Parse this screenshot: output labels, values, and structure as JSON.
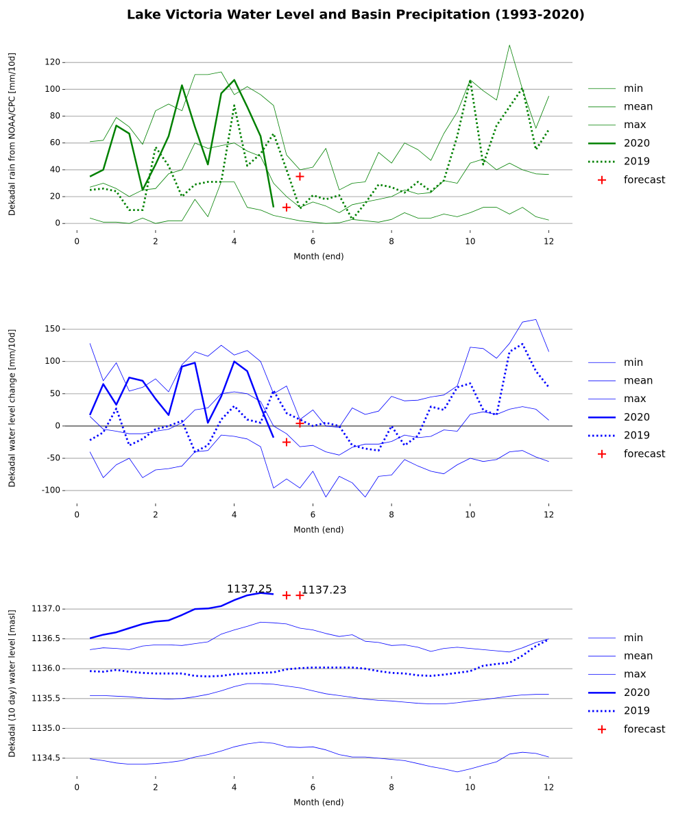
{
  "title": "Lake Victoria Water Level and Basin Precipitation (1993-2020)",
  "chart_data": [
    {
      "type": "line",
      "xlabel": "Month (end)",
      "ylabel": "Dekadal rain from NOAA/CPC [mm/10d]",
      "xlim": [
        -0.3,
        12.6
      ],
      "xticks": [
        0,
        2,
        4,
        6,
        8,
        10,
        12
      ],
      "ylim": [
        -5,
        138
      ],
      "yticks": [
        0,
        20,
        40,
        60,
        80,
        100,
        120
      ],
      "grid": true,
      "legend": "right",
      "x": [
        0.33,
        0.67,
        1,
        1.33,
        1.67,
        2,
        2.33,
        2.67,
        3,
        3.33,
        3.67,
        4,
        4.33,
        4.67,
        5,
        5.33,
        5.67,
        6,
        6.33,
        6.67,
        7,
        7.33,
        7.67,
        8,
        8.33,
        8.67,
        9,
        9.33,
        9.67,
        10,
        10.33,
        10.67,
        11,
        11.33,
        11.67,
        12
      ],
      "series": [
        {
          "name": "min",
          "color": "#008000",
          "linewidth": 0.8,
          "linestyle": "solid",
          "values": [
            4,
            1,
            1,
            0,
            4,
            0,
            2,
            2,
            18,
            5,
            31,
            31,
            12,
            10,
            6,
            4,
            2,
            1,
            0,
            0.5,
            3,
            2,
            1,
            3,
            8,
            4,
            4,
            7,
            5,
            8,
            12,
            12,
            7,
            12,
            5,
            2.5
          ]
        },
        {
          "name": "mean",
          "color": "#008000",
          "linewidth": 0.8,
          "linestyle": "solid",
          "values": [
            27,
            30,
            26,
            20,
            25,
            26,
            37,
            40,
            60,
            56,
            58,
            60,
            54,
            50,
            30,
            20,
            12,
            16,
            13,
            8,
            14,
            16,
            18,
            20,
            25,
            22,
            23,
            32,
            30,
            45,
            48,
            40,
            45,
            40,
            37,
            36.5
          ]
        },
        {
          "name": "max",
          "color": "#008000",
          "linewidth": 0.8,
          "linestyle": "solid",
          "values": [
            61,
            62,
            79,
            72,
            59,
            84,
            89,
            84,
            111,
            111,
            113,
            96,
            102,
            96,
            88,
            51,
            40,
            42,
            56,
            25,
            30,
            31,
            53,
            45,
            60,
            55,
            47,
            67,
            83,
            107,
            99,
            92,
            133,
            100,
            71,
            95
          ]
        },
        {
          "name": "2020",
          "color": "#008000",
          "linewidth": 2.5,
          "linestyle": "solid",
          "values": [
            35,
            40,
            73,
            67,
            25,
            44,
            65,
            103,
            72,
            44,
            97,
            107,
            87,
            65,
            12,
            null,
            null,
            null,
            null,
            null,
            null,
            null,
            null,
            null,
            null,
            null,
            null,
            null,
            null,
            null,
            null,
            null,
            null,
            null,
            null,
            null
          ]
        },
        {
          "name": "2019",
          "color": "#008000",
          "linewidth": 2.8,
          "linestyle": "dotted",
          "values": [
            25,
            26,
            24,
            10,
            10,
            57,
            43,
            20,
            29,
            31,
            31,
            88,
            43,
            52,
            67,
            40,
            11,
            21,
            18,
            21,
            3,
            15,
            29,
            27,
            23,
            31,
            24,
            32,
            65,
            107,
            44,
            73,
            87,
            101,
            55,
            70
          ]
        },
        {
          "name": "forecast",
          "color": "#ff0000",
          "marker": "+",
          "x": [
            5.33,
            5.67
          ],
          "values": [
            12,
            35
          ]
        }
      ]
    },
    {
      "type": "line",
      "xlabel": "Month (end)",
      "ylabel": "Dekadal water level change [mm/10d]",
      "xlim": [
        -0.3,
        12.6
      ],
      "xticks": [
        0,
        2,
        4,
        6,
        8,
        10,
        12
      ],
      "ylim": [
        -120,
        175
      ],
      "yticks": [
        -100,
        -50,
        0,
        50,
        100,
        150
      ],
      "grid": true,
      "legend": "right",
      "hline": 0,
      "x": [
        0.33,
        0.67,
        1,
        1.33,
        1.67,
        2,
        2.33,
        2.67,
        3,
        3.33,
        3.67,
        4,
        4.33,
        4.67,
        5,
        5.33,
        5.67,
        6,
        6.33,
        6.67,
        7,
        7.33,
        7.67,
        8,
        8.33,
        8.67,
        9,
        9.33,
        9.67,
        10,
        10.33,
        10.67,
        11,
        11.33,
        11.67,
        12
      ],
      "series": [
        {
          "name": "min",
          "color": "#0000ff",
          "linewidth": 0.8,
          "linestyle": "solid",
          "values": [
            -40,
            -80,
            -60,
            -50,
            -80,
            -68,
            -66,
            -62,
            -40,
            -38,
            -14,
            -16,
            -20,
            -32,
            -96,
            -82,
            -96,
            -70,
            -110,
            -78,
            -88,
            -110,
            -78,
            -76,
            -52,
            -62,
            -70,
            -74,
            -60,
            -50,
            -55,
            -52,
            -40,
            -38,
            -48,
            -55
          ]
        },
        {
          "name": "mean",
          "color": "#0000ff",
          "linewidth": 0.8,
          "linestyle": "solid",
          "values": [
            15,
            -5,
            -8,
            -12,
            -12,
            -8,
            -5,
            5,
            25,
            28,
            50,
            53,
            50,
            38,
            0,
            -12,
            -32,
            -30,
            -40,
            -45,
            -33,
            -28,
            -28,
            -24,
            -14,
            -18,
            -16,
            -6,
            -8,
            18,
            22,
            18,
            26,
            30,
            26,
            9
          ]
        },
        {
          "name": "max",
          "color": "#0000ff",
          "linewidth": 0.8,
          "linestyle": "solid",
          "values": [
            128,
            70,
            98,
            54,
            60,
            73,
            53,
            95,
            115,
            108,
            125,
            110,
            117,
            100,
            50,
            62,
            10,
            25,
            0,
            -2,
            28,
            18,
            23,
            46,
            39,
            40,
            45,
            48,
            62,
            122,
            120,
            105,
            128,
            161,
            165,
            115
          ]
        },
        {
          "name": "2020",
          "color": "#0000ff",
          "linewidth": 2.5,
          "linestyle": "solid",
          "values": [
            17,
            65,
            33,
            75,
            70,
            42,
            17,
            92,
            98,
            5,
            46,
            100,
            85,
            30,
            -18,
            null,
            null,
            null,
            null,
            null,
            null,
            null,
            null,
            null,
            null,
            null,
            null,
            null,
            null,
            null,
            null,
            null,
            null,
            null,
            null,
            null
          ]
        },
        {
          "name": "2019",
          "color": "#0000ff",
          "linewidth": 2.8,
          "linestyle": "dotted",
          "values": [
            -22,
            -10,
            27,
            -30,
            -20,
            -5,
            0,
            8,
            -40,
            -30,
            10,
            31,
            10,
            5,
            55,
            20,
            10,
            0,
            5,
            0,
            -30,
            -35,
            -38,
            0,
            -30,
            -15,
            30,
            25,
            60,
            66,
            25,
            17,
            115,
            127,
            85,
            60
          ]
        },
        {
          "name": "forecast",
          "color": "#ff0000",
          "marker": "+",
          "x": [
            5.33,
            5.67
          ],
          "values": [
            -25,
            4
          ]
        }
      ]
    },
    {
      "type": "line",
      "xlabel": "Month (end)",
      "ylabel": "Dekadal (10 day) water level [masl]",
      "xlim": [
        -0.3,
        12.6
      ],
      "xticks": [
        0,
        2,
        4,
        6,
        8,
        10,
        12
      ],
      "ylim": [
        1134.2,
        1137.3
      ],
      "yticks": [
        {
          "value": 1134.5,
          "label": "1134.5"
        },
        {
          "value": 1135,
          "label": "1135.0"
        },
        {
          "value": 1135.5,
          "label": "1135.5"
        },
        {
          "value": 1136,
          "label": "1136.0"
        },
        {
          "value": 1136.5,
          "label": "1136.5"
        },
        {
          "value": 1137,
          "label": "1137.0"
        }
      ],
      "grid": true,
      "legend": "right",
      "annotations": [
        "1137.25",
        "1137.23"
      ],
      "x": [
        0.33,
        0.67,
        1,
        1.33,
        1.67,
        2,
        2.33,
        2.67,
        3,
        3.33,
        3.67,
        4,
        4.33,
        4.67,
        5,
        5.33,
        5.67,
        6,
        6.33,
        6.67,
        7,
        7.33,
        7.67,
        8,
        8.33,
        8.67,
        9,
        9.33,
        9.67,
        10,
        10.33,
        10.67,
        11,
        11.33,
        11.67,
        12
      ],
      "series": [
        {
          "name": "min",
          "color": "#0000ff",
          "linewidth": 0.8,
          "linestyle": "solid",
          "values": [
            1134.49,
            1134.46,
            1134.42,
            1134.4,
            1134.4,
            1134.41,
            1134.43,
            1134.46,
            1134.52,
            1134.56,
            1134.62,
            1134.69,
            1134.74,
            1134.77,
            1134.75,
            1134.69,
            1134.68,
            1134.69,
            1134.64,
            1134.56,
            1134.52,
            1134.52,
            1134.5,
            1134.48,
            1134.46,
            1134.41,
            1134.36,
            1134.32,
            1134.27,
            1134.32,
            1134.38,
            1134.44,
            1134.57,
            1134.6,
            1134.58,
            1134.52
          ]
        },
        {
          "name": "mean",
          "color": "#0000ff",
          "linewidth": 0.8,
          "linestyle": "solid",
          "values": [
            1135.55,
            1135.55,
            1135.54,
            1135.53,
            1135.51,
            1135.5,
            1135.49,
            1135.5,
            1135.53,
            1135.57,
            1135.63,
            1135.7,
            1135.75,
            1135.75,
            1135.74,
            1135.71,
            1135.68,
            1135.63,
            1135.58,
            1135.55,
            1135.52,
            1135.49,
            1135.47,
            1135.46,
            1135.44,
            1135.42,
            1135.41,
            1135.41,
            1135.43,
            1135.46,
            1135.48,
            1135.51,
            1135.54,
            1135.56,
            1135.57,
            1135.57
          ]
        },
        {
          "name": "max",
          "color": "#0000ff",
          "linewidth": 0.8,
          "linestyle": "solid",
          "values": [
            1136.32,
            1136.35,
            1136.34,
            1136.32,
            1136.38,
            1136.4,
            1136.4,
            1136.39,
            1136.42,
            1136.45,
            1136.58,
            1136.65,
            1136.71,
            1136.78,
            1136.77,
            1136.75,
            1136.68,
            1136.65,
            1136.59,
            1136.54,
            1136.57,
            1136.46,
            1136.44,
            1136.39,
            1136.4,
            1136.36,
            1136.29,
            1136.34,
            1136.36,
            1136.34,
            1136.32,
            1136.3,
            1136.28,
            1136.35,
            1136.44,
            1136.5
          ]
        },
        {
          "name": "2020",
          "color": "#0000ff",
          "linewidth": 2.5,
          "linestyle": "solid",
          "values": [
            1136.51,
            1136.57,
            1136.61,
            1136.68,
            1136.75,
            1136.79,
            1136.81,
            1136.9,
            1137.0,
            1137.01,
            1137.05,
            1137.15,
            1137.23,
            1137.27,
            1137.25,
            null,
            null,
            null,
            null,
            null,
            null,
            null,
            null,
            null,
            null,
            null,
            null,
            null,
            null,
            null,
            null,
            null,
            null,
            null,
            null,
            null
          ]
        },
        {
          "name": "2019",
          "color": "#0000ff",
          "linewidth": 2.8,
          "linestyle": "dotted",
          "values": [
            1135.96,
            1135.95,
            1135.98,
            1135.95,
            1135.93,
            1135.92,
            1135.92,
            1135.92,
            1135.88,
            1135.87,
            1135.88,
            1135.91,
            1135.92,
            1135.93,
            1135.94,
            1135.99,
            1136.01,
            1136.02,
            1136.02,
            1136.02,
            1136.02,
            1136.0,
            1135.96,
            1135.93,
            1135.92,
            1135.89,
            1135.88,
            1135.9,
            1135.93,
            1135.96,
            1136.05,
            1136.08,
            1136.1,
            1136.22,
            1136.38,
            1136.49
          ]
        },
        {
          "name": "forecast",
          "color": "#ff0000",
          "marker": "+",
          "x": [
            5.33,
            5.67
          ],
          "values": [
            1137.23,
            1137.23
          ]
        }
      ]
    }
  ]
}
